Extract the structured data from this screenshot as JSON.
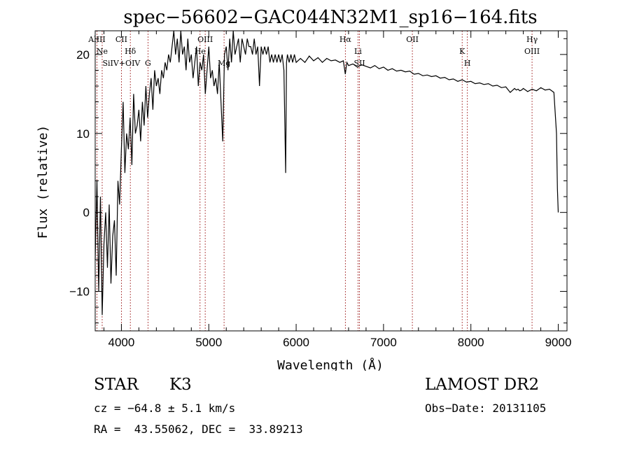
{
  "chart_data": {
    "type": "line",
    "title": "spec−56602−GAC044N32M1_sp16−164.fits",
    "xlabel": "Wavelength (Å)",
    "ylabel": "Flux (relative)",
    "xlim": [
      3700,
      9100
    ],
    "ylim": [
      -15,
      23
    ],
    "xticks": [
      4000,
      5000,
      6000,
      7000,
      8000,
      9000
    ],
    "yticks": [
      -10,
      0,
      10,
      20
    ],
    "grid": false,
    "series": [
      {
        "x": [
          3700,
          3720,
          3740,
          3760,
          3780,
          3800,
          3820,
          3840,
          3860,
          3880,
          3900,
          3920,
          3940,
          3960,
          3980,
          4000,
          4020,
          4040,
          4060,
          4080,
          4100,
          4120,
          4140,
          4160,
          4180,
          4200,
          4220,
          4240,
          4260,
          4280,
          4300,
          4320,
          4340,
          4360,
          4380,
          4400,
          4420,
          4440,
          4460,
          4480,
          4500,
          4520,
          4540,
          4560,
          4580,
          4600,
          4620,
          4640,
          4660,
          4680,
          4700,
          4720,
          4740,
          4760,
          4780,
          4800,
          4820,
          4840,
          4860,
          4880,
          4900,
          4920,
          4940,
          4960,
          4980,
          5000,
          5020,
          5040,
          5060,
          5080,
          5100,
          5120,
          5140,
          5160,
          5180,
          5200,
          5220,
          5240,
          5260,
          5280,
          5300,
          5320,
          5340,
          5360,
          5380,
          5400,
          5420,
          5440,
          5460,
          5480,
          5500,
          5520,
          5540,
          5560,
          5580,
          5600,
          5620,
          5640,
          5660,
          5680,
          5700,
          5720,
          5740,
          5760,
          5780,
          5800,
          5820,
          5840,
          5860,
          5880,
          5890,
          5900,
          5920,
          5940,
          5960,
          5980,
          6000,
          6050,
          6100,
          6150,
          6200,
          6250,
          6300,
          6350,
          6400,
          6450,
          6500,
          6540,
          6563,
          6580,
          6600,
          6650,
          6700,
          6750,
          6800,
          6850,
          6900,
          6950,
          7000,
          7050,
          7100,
          7150,
          7200,
          7250,
          7300,
          7350,
          7400,
          7450,
          7500,
          7550,
          7600,
          7650,
          7700,
          7750,
          7800,
          7850,
          7900,
          7950,
          8000,
          8050,
          8100,
          8150,
          8200,
          8250,
          8300,
          8350,
          8400,
          8450,
          8500,
          8520,
          8540,
          8560,
          8580,
          8600,
          8650,
          8700,
          8750,
          8800,
          8850,
          8900,
          8950,
          8980,
          8990,
          9000
        ],
        "y": [
          -6,
          4,
          -10,
          2,
          -13,
          -4,
          0,
          -7,
          1,
          -9,
          -3,
          -1,
          -8,
          4,
          1,
          8,
          14,
          5,
          10,
          8,
          12,
          6,
          15,
          10,
          11,
          13,
          9,
          14,
          11,
          16,
          12,
          15,
          17,
          13,
          18,
          16,
          17,
          15,
          18,
          17,
          19,
          18,
          20,
          19,
          21,
          23,
          20,
          22,
          19,
          23,
          20,
          21,
          18,
          22,
          19,
          20,
          17,
          19,
          21,
          16,
          19,
          18,
          20,
          15,
          18,
          21,
          17,
          18,
          16,
          17,
          15,
          19,
          14,
          9,
          20,
          21,
          18,
          22,
          19,
          23,
          20,
          21,
          22,
          19,
          22,
          21,
          20,
          22,
          21,
          21,
          20,
          22,
          20,
          21,
          16,
          21,
          20,
          21,
          20,
          21,
          19,
          20,
          19,
          20,
          19,
          20,
          19,
          20,
          18,
          5,
          19,
          20,
          19,
          20,
          19,
          20,
          19,
          19.5,
          19,
          19.8,
          19.2,
          19.6,
          19,
          19.5,
          19.2,
          19.3,
          19,
          19.2,
          17.5,
          19,
          18.6,
          18.8,
          18.4,
          18.7,
          18.5,
          18.3,
          18.6,
          18.2,
          18.4,
          18.0,
          18.2,
          17.9,
          18.0,
          17.8,
          17.9,
          17.5,
          17.6,
          17.3,
          17.4,
          17.2,
          17.3,
          17.0,
          17.1,
          16.8,
          16.9,
          16.6,
          16.8,
          16.5,
          16.6,
          16.3,
          16.4,
          16.2,
          16.3,
          16.0,
          16.1,
          15.8,
          15.9,
          15.2,
          15.7,
          15.5,
          15.6,
          15.4,
          15.5,
          15.7,
          15.3,
          15.6,
          15.4,
          15.8,
          15.5,
          15.6,
          15.2,
          10,
          3,
          0
        ]
      }
    ],
    "line_markers": [
      {
        "label": "AlIII",
        "x": 3720
      },
      {
        "label": "Ne",
        "x": 3780
      },
      {
        "label": "SiIV+OIV",
        "x": 4000
      },
      {
        "label": "CII",
        "x": 4000
      },
      {
        "label": "Hδ",
        "x": 4102
      },
      {
        "label": "G",
        "x": 4304
      },
      {
        "label": "OIII",
        "x": 4959
      },
      {
        "label": "He",
        "x": 4900
      },
      {
        "label": "Mg",
        "x": 5175
      },
      {
        "label": "Hα",
        "x": 6563
      },
      {
        "label": "Li",
        "x": 6708
      },
      {
        "label": "SII",
        "x": 6725
      },
      {
        "label": "OII",
        "x": 7330
      },
      {
        "label": "K",
        "x": 7900
      },
      {
        "label": "H",
        "x": 7960
      },
      {
        "label": "Hγ",
        "x": 8700
      },
      {
        "label": "OIII",
        "x": 8700
      }
    ]
  },
  "info": {
    "object_class": "STAR",
    "subclass": "K3",
    "survey": "LAMOST DR2",
    "redshift": "cz = −64.8 ± 5.1 km/s",
    "obs_date": "Obs−Date: 20131105",
    "coords": "RA =  43.55062, DEC =  33.89213"
  }
}
